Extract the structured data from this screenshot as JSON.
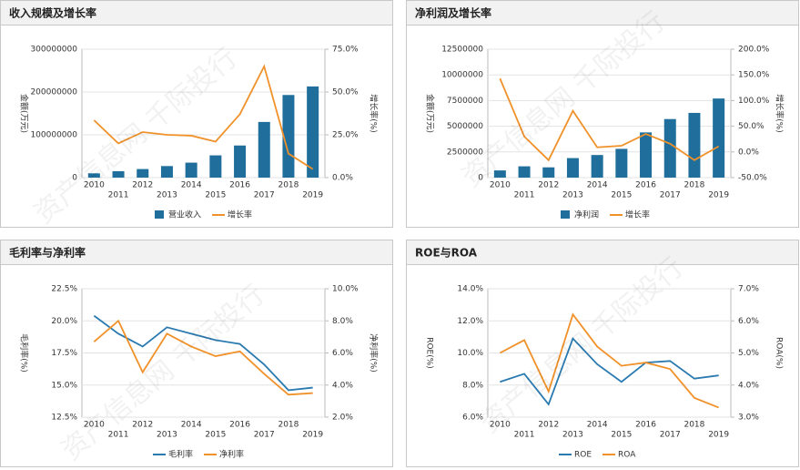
{
  "watermark": "资产信息网 千际投行",
  "chart_data": [
    {
      "type": "combo",
      "title": "收入规模及增长率",
      "y_label": "金额(万元)",
      "y2_label": "增长率(%)",
      "categories": [
        "2010",
        "2011",
        "2012",
        "2013",
        "2014",
        "2015",
        "2016",
        "2017",
        "2018",
        "2019"
      ],
      "series": [
        {
          "name": "营业收入",
          "type": "bar",
          "color": "#1f6e9c",
          "values": [
            10000000,
            15000000,
            20000000,
            27000000,
            35000000,
            52000000,
            75000000,
            130000000,
            193000000,
            213000000
          ]
        },
        {
          "name": "增长率",
          "type": "line",
          "axis": "y2",
          "color": "#f0912a",
          "values": [
            33.5,
            20,
            26.6,
            25,
            24.5,
            21,
            37,
            65,
            14,
            5
          ]
        }
      ],
      "ylim": [
        0,
        300000000
      ],
      "yticks": [
        0,
        100000000,
        200000000,
        300000000
      ],
      "y2lim": [
        0,
        75
      ],
      "y2ticks": [
        {
          "value": 0,
          "label": "0.0%"
        },
        {
          "value": 25,
          "label": "25.0%"
        },
        {
          "value": 50,
          "label": "50.0%"
        },
        {
          "value": 75,
          "label": "75.0%"
        }
      ],
      "grid": true
    },
    {
      "type": "combo",
      "title": "净利润及增长率",
      "y_label": "金额(万元)",
      "y2_label": "增长率(%)",
      "categories": [
        "2010",
        "2011",
        "2012",
        "2013",
        "2014",
        "2015",
        "2016",
        "2017",
        "2018",
        "2019"
      ],
      "series": [
        {
          "name": "净利润",
          "type": "bar",
          "color": "#1f6e9c",
          "values": [
            700000,
            1100000,
            1000000,
            1900000,
            2200000,
            2800000,
            4400000,
            5700000,
            6300000,
            7700000
          ]
        },
        {
          "name": "增长率",
          "type": "line",
          "axis": "y2",
          "color": "#f0912a",
          "values": [
            143,
            30,
            -16,
            80,
            9,
            12,
            35,
            16,
            -16,
            11
          ]
        }
      ],
      "ylim": [
        0,
        12500000
      ],
      "yticks": [
        0,
        2500000,
        5000000,
        7500000,
        10000000,
        12500000
      ],
      "y2lim": [
        -50,
        200
      ],
      "y2ticks": [
        {
          "value": -50,
          "label": "-50.0%"
        },
        {
          "value": 0,
          "label": "0.0%"
        },
        {
          "value": 50,
          "label": "50.0%"
        },
        {
          "value": 100,
          "label": "100.0%"
        },
        {
          "value": 150,
          "label": "150.0%"
        },
        {
          "value": 200,
          "label": "200.0%"
        }
      ],
      "grid": true
    },
    {
      "type": "line",
      "title": "毛利率与净利率",
      "y_label": "毛利率(%)",
      "y2_label": "净利率(%)",
      "categories": [
        "2010",
        "2011",
        "2012",
        "2013",
        "2014",
        "2015",
        "2016",
        "2017",
        "2018",
        "2019"
      ],
      "series": [
        {
          "name": "毛利率",
          "type": "line",
          "color": "#2a7ab0",
          "values": [
            20.4,
            19.0,
            18.0,
            19.5,
            19.0,
            18.5,
            18.2,
            16.6,
            14.6,
            14.8
          ]
        },
        {
          "name": "净利率",
          "type": "line",
          "axis": "y2",
          "color": "#f0912a",
          "values": [
            6.7,
            8.0,
            4.8,
            7.2,
            6.4,
            5.8,
            6.1,
            4.7,
            3.4,
            3.5
          ]
        }
      ],
      "ylim": [
        12.5,
        22.5
      ],
      "yticks": [
        {
          "value": 12.5,
          "label": "12.5%"
        },
        {
          "value": 15,
          "label": "15.0%"
        },
        {
          "value": 17.5,
          "label": "17.5%"
        },
        {
          "value": 20,
          "label": "20.0%"
        },
        {
          "value": 22.5,
          "label": "22.5%"
        }
      ],
      "y2lim": [
        2,
        10
      ],
      "y2ticks": [
        {
          "value": 2,
          "label": "2.0%"
        },
        {
          "value": 4,
          "label": "4.0%"
        },
        {
          "value": 6,
          "label": "6.0%"
        },
        {
          "value": 8,
          "label": "8.0%"
        },
        {
          "value": 10,
          "label": "10.0%"
        }
      ],
      "grid": true
    },
    {
      "type": "line",
      "title": "ROE与ROA",
      "y_label": "ROE(%)",
      "y2_label": "ROA(%)",
      "categories": [
        "2010",
        "2011",
        "2012",
        "2013",
        "2014",
        "2015",
        "2016",
        "2017",
        "2018",
        "2019"
      ],
      "series": [
        {
          "name": "ROE",
          "type": "line",
          "color": "#2a7ab0",
          "values": [
            8.2,
            8.7,
            6.8,
            10.9,
            9.3,
            8.2,
            9.4,
            9.5,
            8.4,
            8.6
          ]
        },
        {
          "name": "ROA",
          "type": "line",
          "axis": "y2",
          "color": "#f0912a",
          "values": [
            5.0,
            5.4,
            3.8,
            6.2,
            5.2,
            4.6,
            4.7,
            4.5,
            3.6,
            3.3
          ]
        }
      ],
      "ylim": [
        6,
        14
      ],
      "yticks": [
        {
          "value": 6,
          "label": "6.0%"
        },
        {
          "value": 8,
          "label": "8.0%"
        },
        {
          "value": 10,
          "label": "10.0%"
        },
        {
          "value": 12,
          "label": "12.0%"
        },
        {
          "value": 14,
          "label": "14.0%"
        }
      ],
      "y2lim": [
        3,
        7
      ],
      "y2ticks": [
        {
          "value": 3,
          "label": "3.0%"
        },
        {
          "value": 4,
          "label": "4.0%"
        },
        {
          "value": 5,
          "label": "5.0%"
        },
        {
          "value": 6,
          "label": "6.0%"
        },
        {
          "value": 7,
          "label": "7.0%"
        }
      ],
      "grid": true
    }
  ]
}
